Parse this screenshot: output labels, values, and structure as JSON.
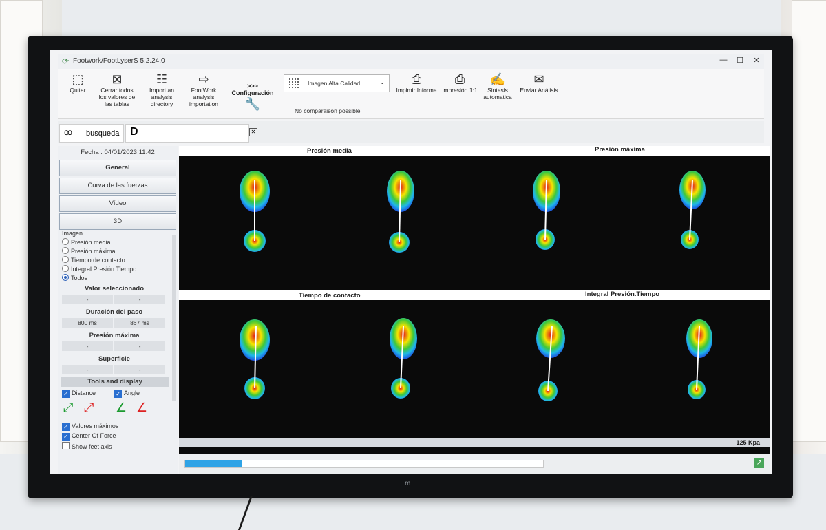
{
  "window": {
    "title": "Footwork/FootLyserS 5.2.24.0",
    "minimize": "—",
    "maximize": "☐",
    "close": "✕"
  },
  "toolbar": {
    "quit": "Quitar",
    "close_all": "Cerrar todos los valores de las tablas",
    "import": "Import an analysis directory",
    "footwork_import": "FootWork analysis importation",
    "config_arrows": ">>>",
    "config": "Configuración",
    "image_quality": "Imagen Alta Calidad",
    "no_comparison": "No comparaison possible",
    "print_report": "Impimir Informe",
    "print_1to1": "impresión 1:1",
    "synthesis": "Sintesis automatica",
    "send": "Enviar Análisis"
  },
  "tabs": {
    "search": "busqueda"
  },
  "left_panel": {
    "date": "Fecha : 04/01/2023 11:42",
    "nav": [
      "General",
      "Curva de las fuerzas",
      "Vídeo",
      "3D"
    ],
    "image_label": "Imagen",
    "image_options": [
      "Presión media",
      "Presión máxima",
      "Tiempo de contacto",
      "Integral Presión.Tiempo",
      "Todos"
    ],
    "selected_option": "Todos",
    "valor_seleccionado": "Valor seleccionado",
    "valor_cells": [
      "-",
      "-"
    ],
    "duracion": "Duración del paso",
    "duracion_cells": [
      "800 ms",
      "867 ms"
    ],
    "presion_maxima": "Presión máxima",
    "presion_cells": [
      "-",
      "-"
    ],
    "superficie": "Superficie",
    "superficie_cells": [
      "-",
      "-"
    ],
    "tools": "Tools and display",
    "distance": "Distance",
    "angle": "Angle",
    "valores_maximos": "Valores máximos",
    "center_of_force": "Center Of Force",
    "show_feet_axis": "Show feet axis"
  },
  "main": {
    "presion_media": "Presión media",
    "presion_maxima": "Presión máxima",
    "tiempo_contacto": "Tiempo de contacto",
    "integral": "Integral Presión.Tiempo",
    "scale": "125 Kpa",
    "progress": 0.16
  },
  "colors": {
    "accent": "#2fa3e6",
    "pressure_high": "#e01b1b",
    "pressure_mid": "#f5e400",
    "pressure_low": "#1d4fe0"
  }
}
